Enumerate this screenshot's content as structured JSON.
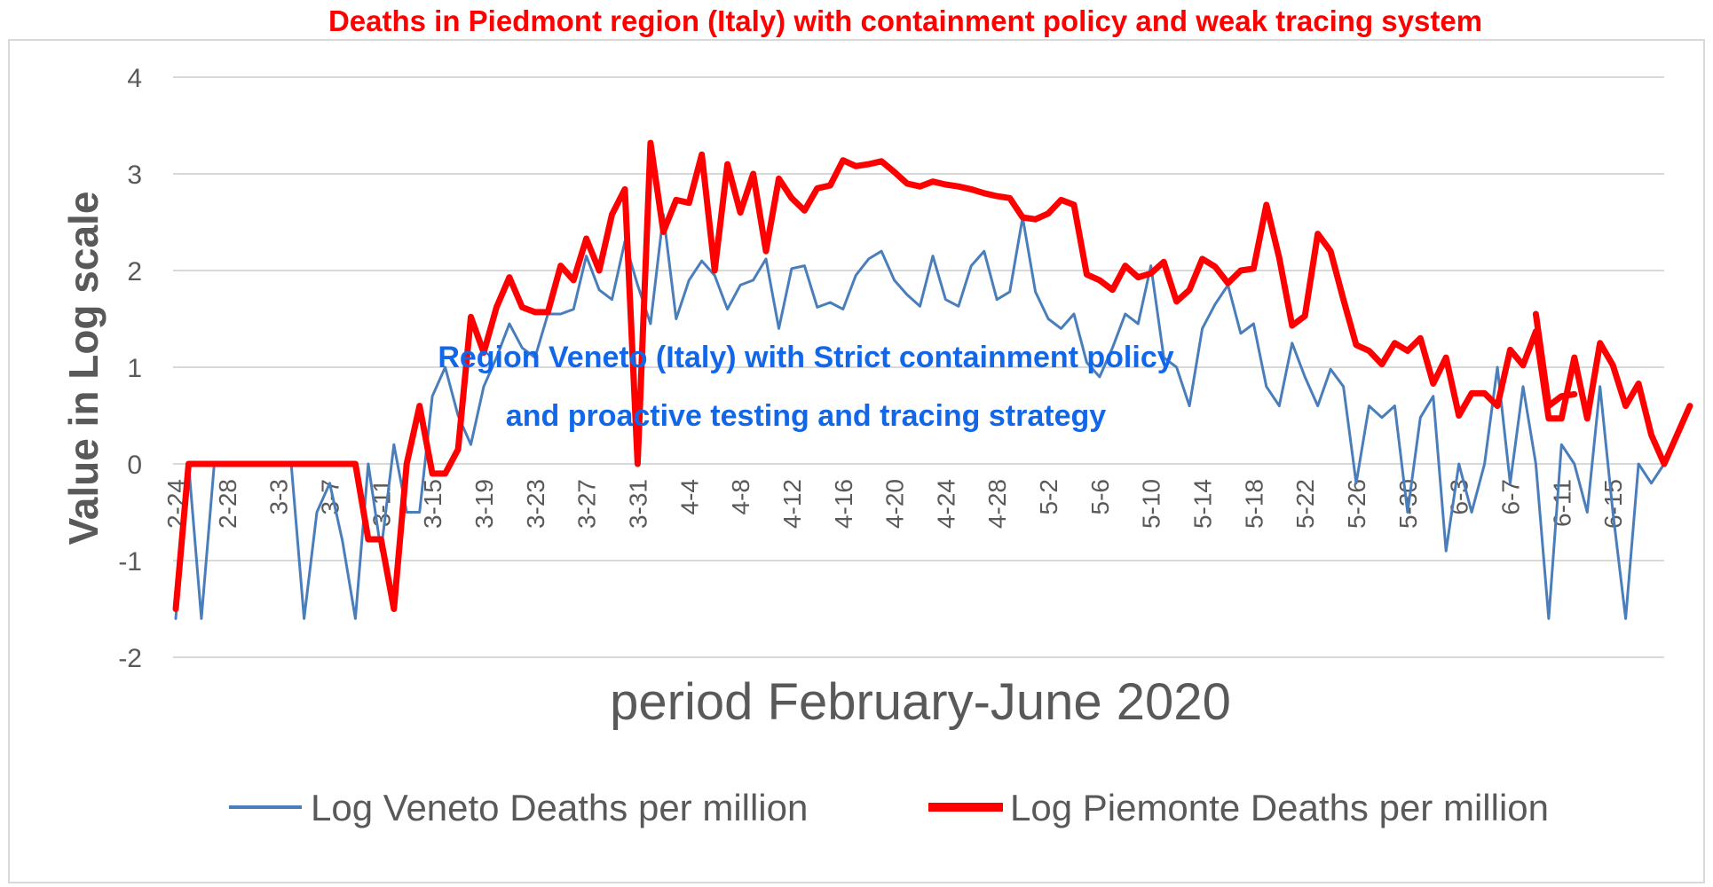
{
  "chart_data": {
    "type": "line",
    "title": "Deaths in Piedmont region (Italy) with containment policy and weak tracing system",
    "xlabel": "period February-June 2020",
    "ylabel": "Value in Log scale",
    "ylim": [
      -2,
      4
    ],
    "yticks": [
      "-2",
      "-1",
      "0",
      "1",
      "2",
      "3",
      "4"
    ],
    "grid": true,
    "legend_position": "bottom",
    "x_tick_labels": [
      "2-24",
      "2-28",
      "3-3",
      "3-7",
      "3-11",
      "3-15",
      "3-19",
      "3-23",
      "3-27",
      "3-31",
      "4-4",
      "4-8",
      "4-12",
      "4-16",
      "4-20",
      "4-24",
      "4-28",
      "5-2",
      "5-6",
      "5-10",
      "5-14",
      "5-18",
      "5-22",
      "5-26",
      "5-30",
      "6-3",
      "6-7",
      "6-11",
      "6-15"
    ],
    "annotations": [
      "Region Veneto (Italy) with Strict containment policy",
      "and proactive testing and tracing strategy"
    ],
    "x_start_date": "2020-02-24",
    "series": [
      {
        "name": "Log  Veneto Deaths per million",
        "color": "#4a7ebb",
        "values": [
          -1.6,
          0,
          -1.6,
          0,
          0,
          0,
          0,
          0,
          0,
          0,
          -1.6,
          -0.5,
          -0.2,
          -0.8,
          -1.6,
          0,
          -0.9,
          0.2,
          -0.5,
          -0.5,
          0.7,
          1.0,
          0.5,
          0.2,
          0.8,
          1.1,
          1.45,
          1.2,
          1.1,
          1.55,
          1.55,
          1.6,
          2.15,
          1.8,
          1.7,
          2.3,
          1.85,
          1.45,
          2.58,
          1.5,
          1.9,
          2.1,
          1.95,
          1.6,
          1.85,
          1.9,
          2.12,
          1.4,
          2.02,
          2.05,
          1.62,
          1.67,
          1.6,
          1.95,
          2.12,
          2.2,
          1.9,
          1.75,
          1.63,
          2.15,
          1.7,
          1.63,
          2.05,
          2.2,
          1.7,
          1.78,
          2.55,
          1.78,
          1.5,
          1.4,
          1.55,
          1.05,
          0.9,
          1.2,
          1.55,
          1.45,
          2.05,
          1.1,
          1.0,
          0.6,
          1.4,
          1.65,
          1.85,
          1.35,
          1.45,
          0.8,
          0.6,
          1.25,
          0.9,
          0.6,
          0.98,
          0.8,
          -0.2,
          0.6,
          0.48,
          0.6,
          -0.5,
          0.48,
          0.7,
          -0.9,
          0,
          -0.5,
          0,
          1.0,
          -0.2,
          0.8,
          0,
          -1.6,
          0.2,
          0,
          -0.5,
          0.8,
          -0.5,
          -1.6,
          0,
          -0.2,
          0
        ]
      },
      {
        "name": "Log  Piemonte  Deaths per million",
        "color": "#ff0000",
        "values": [
          -1.5,
          0,
          0,
          0,
          0,
          0,
          0,
          0,
          0,
          0,
          0,
          0,
          0,
          0,
          0,
          -0.78,
          -0.78,
          -1.5,
          0,
          0.6,
          -0.1,
          -0.1,
          0.15,
          1.52,
          1.15,
          1.62,
          1.93,
          1.62,
          1.57,
          1.57,
          2.05,
          1.9,
          2.33,
          2.0,
          2.58,
          2.84,
          0,
          3.32,
          2.4,
          2.73,
          2.7,
          3.2,
          2.0,
          3.1,
          2.6,
          3.0,
          2.2,
          2.95,
          2.75,
          2.62,
          2.85,
          2.88,
          3.14,
          3.08,
          3.1,
          3.13,
          3.02,
          2.9,
          2.87,
          2.92,
          2.89,
          2.87,
          2.84,
          2.8,
          2.77,
          2.75,
          2.55,
          2.53,
          2.59,
          2.73,
          2.68,
          1.96,
          1.9,
          1.8,
          2.05,
          1.93,
          1.97,
          2.09,
          1.68,
          1.8,
          2.12,
          2.04,
          1.87,
          2.0,
          2.02,
          2.68,
          2.13,
          1.43,
          1.53,
          2.38,
          2.2,
          1.7,
          1.23,
          1.17,
          1.03,
          1.25,
          1.17,
          1.3,
          0.83,
          1.1,
          0.5,
          0.73,
          0.73,
          0.6,
          1.18,
          1.02,
          1.37,
          0.47,
          0.47,
          1.1,
          0.47,
          1.25,
          1.02,
          0.6,
          0.83,
          0.3,
          0,
          0.3,
          0.6
        ],
        "secondary_trace_values": [
          1.55,
          0.6,
          0.7,
          0.72
        ]
      }
    ]
  }
}
